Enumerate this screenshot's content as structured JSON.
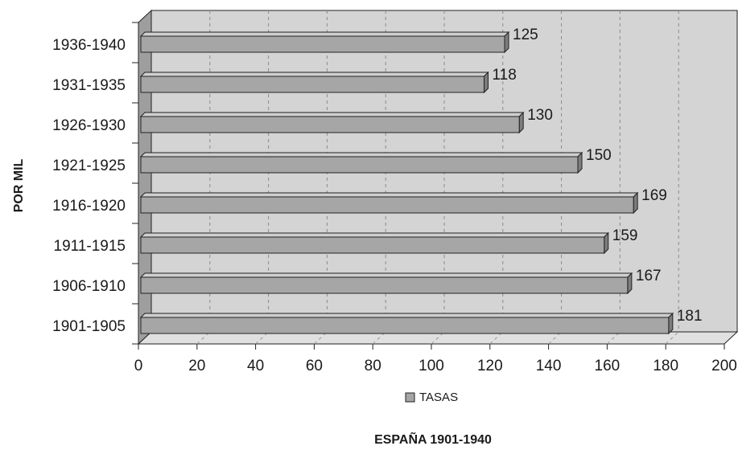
{
  "chart_data": {
    "type": "bar",
    "orientation": "horizontal",
    "categories": [
      "1901-1905",
      "1906-1910",
      "1911-1915",
      "1916-1920",
      "1921-1925",
      "1926-1930",
      "1931-1935",
      "1936-1940"
    ],
    "series": [
      {
        "name": "TASAS",
        "values": [
          181,
          167,
          159,
          169,
          150,
          130,
          118,
          125
        ]
      }
    ],
    "xlim": [
      0,
      200
    ],
    "xticks": [
      "0",
      "20",
      "40",
      "60",
      "80",
      "100",
      "120",
      "140",
      "160",
      "180",
      "200"
    ],
    "ylabel": "POR MIL",
    "caption": "ESPAÑA 1901-1940",
    "legend": {
      "position": "bottom",
      "label": "TASAS"
    },
    "grid": "vertical dashed",
    "colors": {
      "bar": "#a6a6a6",
      "wall": "#d4d4d4",
      "side_wall": "#9e9e9e",
      "floor": "#e0e0e0"
    }
  }
}
